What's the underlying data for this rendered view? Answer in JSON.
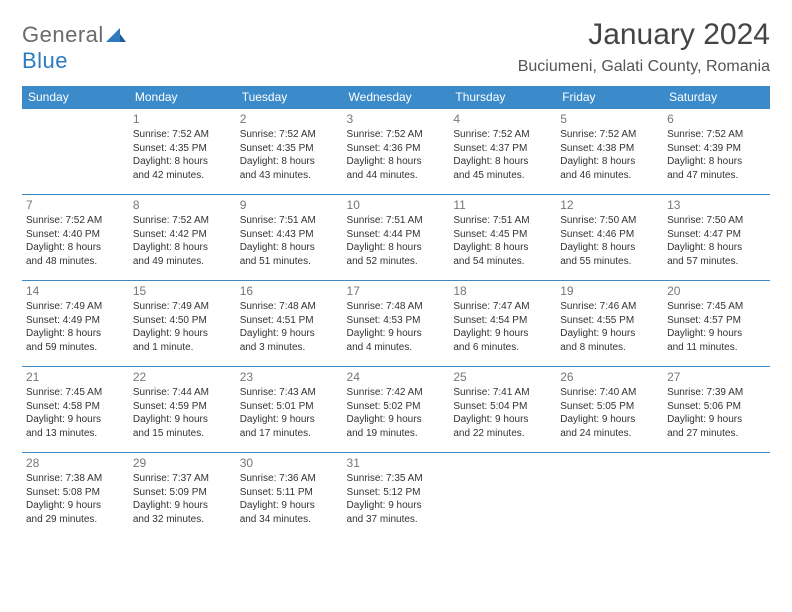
{
  "brand": {
    "part1": "General",
    "part2": "Blue"
  },
  "title": "January 2024",
  "location": "Buciumeni, Galati County, Romania",
  "colors": {
    "header_bg": "#3b8bcb",
    "header_fg": "#ffffff",
    "cell_border": "#3b8bcb",
    "daynum": "#777777",
    "text": "#333333",
    "brand_gray": "#6b6b6b",
    "brand_blue": "#2f7bbf"
  },
  "weekdays": [
    "Sunday",
    "Monday",
    "Tuesday",
    "Wednesday",
    "Thursday",
    "Friday",
    "Saturday"
  ],
  "weeks": [
    [
      null,
      {
        "n": "1",
        "sr": "Sunrise: 7:52 AM",
        "ss": "Sunset: 4:35 PM",
        "d1": "Daylight: 8 hours",
        "d2": "and 42 minutes."
      },
      {
        "n": "2",
        "sr": "Sunrise: 7:52 AM",
        "ss": "Sunset: 4:35 PM",
        "d1": "Daylight: 8 hours",
        "d2": "and 43 minutes."
      },
      {
        "n": "3",
        "sr": "Sunrise: 7:52 AM",
        "ss": "Sunset: 4:36 PM",
        "d1": "Daylight: 8 hours",
        "d2": "and 44 minutes."
      },
      {
        "n": "4",
        "sr": "Sunrise: 7:52 AM",
        "ss": "Sunset: 4:37 PM",
        "d1": "Daylight: 8 hours",
        "d2": "and 45 minutes."
      },
      {
        "n": "5",
        "sr": "Sunrise: 7:52 AM",
        "ss": "Sunset: 4:38 PM",
        "d1": "Daylight: 8 hours",
        "d2": "and 46 minutes."
      },
      {
        "n": "6",
        "sr": "Sunrise: 7:52 AM",
        "ss": "Sunset: 4:39 PM",
        "d1": "Daylight: 8 hours",
        "d2": "and 47 minutes."
      }
    ],
    [
      {
        "n": "7",
        "sr": "Sunrise: 7:52 AM",
        "ss": "Sunset: 4:40 PM",
        "d1": "Daylight: 8 hours",
        "d2": "and 48 minutes."
      },
      {
        "n": "8",
        "sr": "Sunrise: 7:52 AM",
        "ss": "Sunset: 4:42 PM",
        "d1": "Daylight: 8 hours",
        "d2": "and 49 minutes."
      },
      {
        "n": "9",
        "sr": "Sunrise: 7:51 AM",
        "ss": "Sunset: 4:43 PM",
        "d1": "Daylight: 8 hours",
        "d2": "and 51 minutes."
      },
      {
        "n": "10",
        "sr": "Sunrise: 7:51 AM",
        "ss": "Sunset: 4:44 PM",
        "d1": "Daylight: 8 hours",
        "d2": "and 52 minutes."
      },
      {
        "n": "11",
        "sr": "Sunrise: 7:51 AM",
        "ss": "Sunset: 4:45 PM",
        "d1": "Daylight: 8 hours",
        "d2": "and 54 minutes."
      },
      {
        "n": "12",
        "sr": "Sunrise: 7:50 AM",
        "ss": "Sunset: 4:46 PM",
        "d1": "Daylight: 8 hours",
        "d2": "and 55 minutes."
      },
      {
        "n": "13",
        "sr": "Sunrise: 7:50 AM",
        "ss": "Sunset: 4:47 PM",
        "d1": "Daylight: 8 hours",
        "d2": "and 57 minutes."
      }
    ],
    [
      {
        "n": "14",
        "sr": "Sunrise: 7:49 AM",
        "ss": "Sunset: 4:49 PM",
        "d1": "Daylight: 8 hours",
        "d2": "and 59 minutes."
      },
      {
        "n": "15",
        "sr": "Sunrise: 7:49 AM",
        "ss": "Sunset: 4:50 PM",
        "d1": "Daylight: 9 hours",
        "d2": "and 1 minute."
      },
      {
        "n": "16",
        "sr": "Sunrise: 7:48 AM",
        "ss": "Sunset: 4:51 PM",
        "d1": "Daylight: 9 hours",
        "d2": "and 3 minutes."
      },
      {
        "n": "17",
        "sr": "Sunrise: 7:48 AM",
        "ss": "Sunset: 4:53 PM",
        "d1": "Daylight: 9 hours",
        "d2": "and 4 minutes."
      },
      {
        "n": "18",
        "sr": "Sunrise: 7:47 AM",
        "ss": "Sunset: 4:54 PM",
        "d1": "Daylight: 9 hours",
        "d2": "and 6 minutes."
      },
      {
        "n": "19",
        "sr": "Sunrise: 7:46 AM",
        "ss": "Sunset: 4:55 PM",
        "d1": "Daylight: 9 hours",
        "d2": "and 8 minutes."
      },
      {
        "n": "20",
        "sr": "Sunrise: 7:45 AM",
        "ss": "Sunset: 4:57 PM",
        "d1": "Daylight: 9 hours",
        "d2": "and 11 minutes."
      }
    ],
    [
      {
        "n": "21",
        "sr": "Sunrise: 7:45 AM",
        "ss": "Sunset: 4:58 PM",
        "d1": "Daylight: 9 hours",
        "d2": "and 13 minutes."
      },
      {
        "n": "22",
        "sr": "Sunrise: 7:44 AM",
        "ss": "Sunset: 4:59 PM",
        "d1": "Daylight: 9 hours",
        "d2": "and 15 minutes."
      },
      {
        "n": "23",
        "sr": "Sunrise: 7:43 AM",
        "ss": "Sunset: 5:01 PM",
        "d1": "Daylight: 9 hours",
        "d2": "and 17 minutes."
      },
      {
        "n": "24",
        "sr": "Sunrise: 7:42 AM",
        "ss": "Sunset: 5:02 PM",
        "d1": "Daylight: 9 hours",
        "d2": "and 19 minutes."
      },
      {
        "n": "25",
        "sr": "Sunrise: 7:41 AM",
        "ss": "Sunset: 5:04 PM",
        "d1": "Daylight: 9 hours",
        "d2": "and 22 minutes."
      },
      {
        "n": "26",
        "sr": "Sunrise: 7:40 AM",
        "ss": "Sunset: 5:05 PM",
        "d1": "Daylight: 9 hours",
        "d2": "and 24 minutes."
      },
      {
        "n": "27",
        "sr": "Sunrise: 7:39 AM",
        "ss": "Sunset: 5:06 PM",
        "d1": "Daylight: 9 hours",
        "d2": "and 27 minutes."
      }
    ],
    [
      {
        "n": "28",
        "sr": "Sunrise: 7:38 AM",
        "ss": "Sunset: 5:08 PM",
        "d1": "Daylight: 9 hours",
        "d2": "and 29 minutes."
      },
      {
        "n": "29",
        "sr": "Sunrise: 7:37 AM",
        "ss": "Sunset: 5:09 PM",
        "d1": "Daylight: 9 hours",
        "d2": "and 32 minutes."
      },
      {
        "n": "30",
        "sr": "Sunrise: 7:36 AM",
        "ss": "Sunset: 5:11 PM",
        "d1": "Daylight: 9 hours",
        "d2": "and 34 minutes."
      },
      {
        "n": "31",
        "sr": "Sunrise: 7:35 AM",
        "ss": "Sunset: 5:12 PM",
        "d1": "Daylight: 9 hours",
        "d2": "and 37 minutes."
      },
      null,
      null,
      null
    ]
  ]
}
